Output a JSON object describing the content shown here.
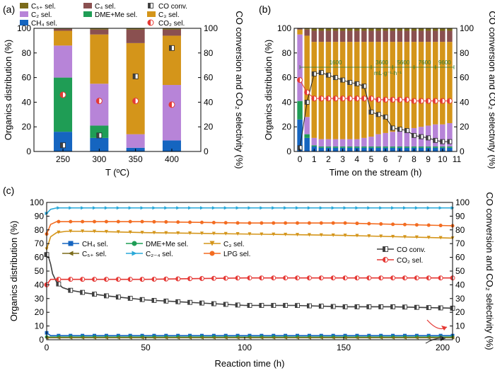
{
  "colors": {
    "C5": "#7b6b1a",
    "C4": "#8a5050",
    "C3": "#d4951a",
    "C2": "#b784d8",
    "DME": "#1f9d55",
    "CH4": "#1565c0",
    "CO": "#404040",
    "CO2": "#e53935",
    "C24": "#29a8d8",
    "LPG": "#f36c21"
  },
  "chart_data": [
    {
      "panel_label": "(a)",
      "type": "bar",
      "stacked": true,
      "xlabel": "T (ºC)",
      "ylabel": "Organics distribution (%)",
      "y2label": "CO conversion and CO₂ selectivity (%)",
      "ylim": [
        0,
        100
      ],
      "y2lim": [
        0,
        100
      ],
      "categories": [
        "250",
        "300",
        "350",
        "400"
      ],
      "yticks": [
        "0",
        "20",
        "40",
        "60",
        "80",
        "100"
      ],
      "legend": [
        {
          "key": "C5",
          "label": "C₅₊ sel."
        },
        {
          "key": "C4",
          "label": "C₄ sel."
        },
        {
          "key": "CO",
          "label": "CO conv."
        },
        {
          "key": "C2",
          "label": "C₂ sel."
        },
        {
          "key": "DME",
          "label": "DME+Me sel."
        },
        {
          "key": "C3",
          "label": "C₃ sel."
        },
        {
          "key": "CH4",
          "label": "CH₄ sel."
        },
        {
          "key": "CO2",
          "label": "CO₂ sel."
        }
      ],
      "series": [
        {
          "key": "CH4",
          "values": [
            16,
            11,
            3,
            9
          ]
        },
        {
          "key": "DME",
          "values": [
            44,
            10,
            0,
            0
          ]
        },
        {
          "key": "C2",
          "values": [
            26,
            34,
            11,
            45
          ]
        },
        {
          "key": "C3",
          "values": [
            12,
            40,
            74,
            40
          ]
        },
        {
          "key": "C4",
          "values": [
            1.5,
            4,
            11,
            5
          ]
        },
        {
          "key": "C5",
          "values": [
            0.5,
            1,
            1,
            1
          ]
        }
      ],
      "co_conv": [
        5,
        13,
        61,
        84
      ],
      "co2_sel": [
        46,
        41,
        41,
        38
      ]
    },
    {
      "panel_label": "(b)",
      "type": "bar",
      "stacked": true,
      "xlabel": "Time on the stream (h)",
      "ylabel": "Organics distribution (%)",
      "y2label": "CO conversion and CO₂ selectivity (%)",
      "xlim": [
        -0.4,
        11
      ],
      "ylim": [
        0,
        100
      ],
      "xticks": [
        "0",
        "1",
        "2",
        "3",
        "4",
        "5",
        "6",
        "7",
        "8",
        "9",
        "10",
        "11"
      ],
      "yticks": [
        "0",
        "20",
        "40",
        "60",
        "80",
        "100"
      ],
      "whsv_labels": [
        "1600",
        "3600",
        "5600",
        "7600",
        "9600"
      ],
      "whsv_unit": "mL·g⁻¹·h⁻¹",
      "x": [
        0,
        0.5,
        1,
        1.5,
        2,
        2.5,
        3,
        3.5,
        4,
        4.5,
        5,
        5.5,
        6,
        6.5,
        7,
        7.5,
        8,
        8.5,
        9,
        9.5,
        10,
        10.5
      ],
      "series": [
        {
          "key": "CH4",
          "values": [
            26,
            11,
            4,
            3,
            3,
            3,
            3,
            3,
            3,
            3,
            3,
            3,
            3,
            3,
            3,
            3,
            3,
            3,
            3,
            3,
            3,
            3
          ]
        },
        {
          "key": "DME",
          "values": [
            15,
            3,
            1,
            1,
            1,
            1,
            1,
            1,
            1,
            1,
            1,
            1,
            1,
            1,
            1,
            1,
            1,
            1,
            1,
            1,
            1,
            1
          ]
        },
        {
          "key": "C2",
          "values": [
            54,
            14,
            6,
            6,
            6,
            6,
            6,
            6,
            6,
            7,
            8,
            10,
            11,
            12,
            13,
            14,
            15,
            16,
            17,
            18,
            18,
            19
          ]
        },
        {
          "key": "C3",
          "values": [
            4,
            66,
            78,
            79,
            79,
            79,
            79,
            79,
            79,
            78,
            77,
            75,
            74,
            73,
            72,
            71,
            70,
            69,
            68,
            67,
            67,
            66
          ]
        },
        {
          "key": "C4",
          "values": [
            1,
            5,
            9,
            9,
            9,
            9,
            9,
            9,
            9,
            9,
            9,
            9,
            9,
            9,
            9,
            9,
            9,
            9,
            9,
            9,
            9,
            9
          ]
        },
        {
          "key": "C5",
          "values": [
            0,
            1,
            2,
            2,
            2,
            2,
            2,
            2,
            2,
            2,
            2,
            2,
            2,
            2,
            2,
            2,
            2,
            2,
            2,
            2,
            2,
            2
          ]
        }
      ],
      "co_conv": {
        "x": [
          0,
          0.5,
          1,
          1.5,
          2,
          2.5,
          3,
          3.5,
          4,
          4.5,
          5,
          5.5,
          6,
          6.5,
          7,
          7.5,
          8,
          8.5,
          9,
          9.5,
          10,
          10.5
        ],
        "y": [
          3,
          40,
          63,
          64,
          62,
          60,
          58,
          56,
          55,
          53,
          32,
          30,
          28,
          19,
          18,
          17,
          13,
          12,
          11,
          9,
          8,
          8
        ]
      },
      "co2_sel": {
        "x": [
          0,
          0.5,
          1,
          1.5,
          2,
          2.5,
          3,
          3.5,
          4,
          4.5,
          5,
          5.5,
          6,
          6.5,
          7,
          7.5,
          8,
          8.5,
          9,
          9.5,
          10,
          10.5
        ],
        "y": [
          58,
          48,
          43,
          43,
          43,
          43,
          43,
          43,
          43,
          43,
          43,
          42,
          42,
          42,
          42,
          42,
          41,
          41,
          41,
          41,
          41,
          41
        ]
      }
    },
    {
      "panel_label": "(c)",
      "type": "line",
      "xlabel": "Reaction time (h)",
      "ylabel": "Organics distribution (%)",
      "y2label": "CO conversion and CO₂ selectivity (%)",
      "xlim": [
        0,
        205
      ],
      "ylim": [
        0,
        100
      ],
      "xticks": [
        "0",
        "50",
        "100",
        "150",
        "200"
      ],
      "yticks": [
        "0",
        "10",
        "20",
        "30",
        "40",
        "50",
        "60",
        "70",
        "80",
        "90",
        "100"
      ],
      "legend": [
        {
          "key": "CH4",
          "label": "CH₄ sel."
        },
        {
          "key": "DME",
          "label": "DME+Me sel."
        },
        {
          "key": "C3",
          "label": "C₃ sel."
        },
        {
          "key": "C5",
          "label": "C₅₊ sel."
        },
        {
          "key": "C24",
          "label": "C₂₋₄ sel."
        },
        {
          "key": "LPG",
          "label": "LPG sel."
        },
        {
          "key": "CO",
          "label": "CO conv."
        },
        {
          "key": "CO2",
          "label": "CO₂ sel."
        }
      ],
      "series": [
        {
          "key": "C24",
          "x": [
            0,
            2,
            5,
            10,
            20,
            50,
            100,
            150,
            205
          ],
          "y": [
            92,
            95,
            96,
            96,
            96,
            96,
            96,
            96,
            96
          ]
        },
        {
          "key": "LPG",
          "x": [
            0,
            2,
            5,
            10,
            20,
            50,
            100,
            150,
            205
          ],
          "y": [
            77,
            84,
            86,
            86,
            86,
            86,
            85,
            85,
            83
          ]
        },
        {
          "key": "C3",
          "x": [
            0,
            2,
            5,
            10,
            20,
            50,
            100,
            150,
            205
          ],
          "y": [
            66,
            75,
            78,
            79,
            79,
            78,
            77,
            76,
            74
          ]
        },
        {
          "key": "CH4",
          "x": [
            0,
            2,
            5,
            10,
            50,
            100,
            150,
            205
          ],
          "y": [
            5,
            3,
            3,
            3,
            3,
            3,
            3,
            3
          ]
        },
        {
          "key": "DME",
          "x": [
            0,
            5,
            50,
            100,
            150,
            205
          ],
          "y": [
            2,
            2,
            2,
            2,
            2,
            2
          ]
        },
        {
          "key": "C5",
          "x": [
            0,
            5,
            50,
            100,
            150,
            205
          ],
          "y": [
            1.5,
            1.5,
            1.5,
            1.5,
            1.5,
            1.5
          ]
        },
        {
          "key": "CO",
          "x": [
            0,
            1,
            2,
            3,
            5,
            8,
            12,
            20,
            30,
            50,
            75,
            100,
            125,
            150,
            175,
            205
          ],
          "y": [
            62,
            60,
            55,
            48,
            42,
            38,
            36,
            34,
            32,
            29,
            27,
            25,
            25,
            24,
            24,
            23
          ]
        },
        {
          "key": "CO2",
          "x": [
            0,
            2,
            5,
            10,
            20,
            50,
            100,
            150,
            205
          ],
          "y": [
            40,
            44,
            44,
            44,
            44,
            44,
            45,
            45,
            45
          ]
        }
      ]
    }
  ]
}
